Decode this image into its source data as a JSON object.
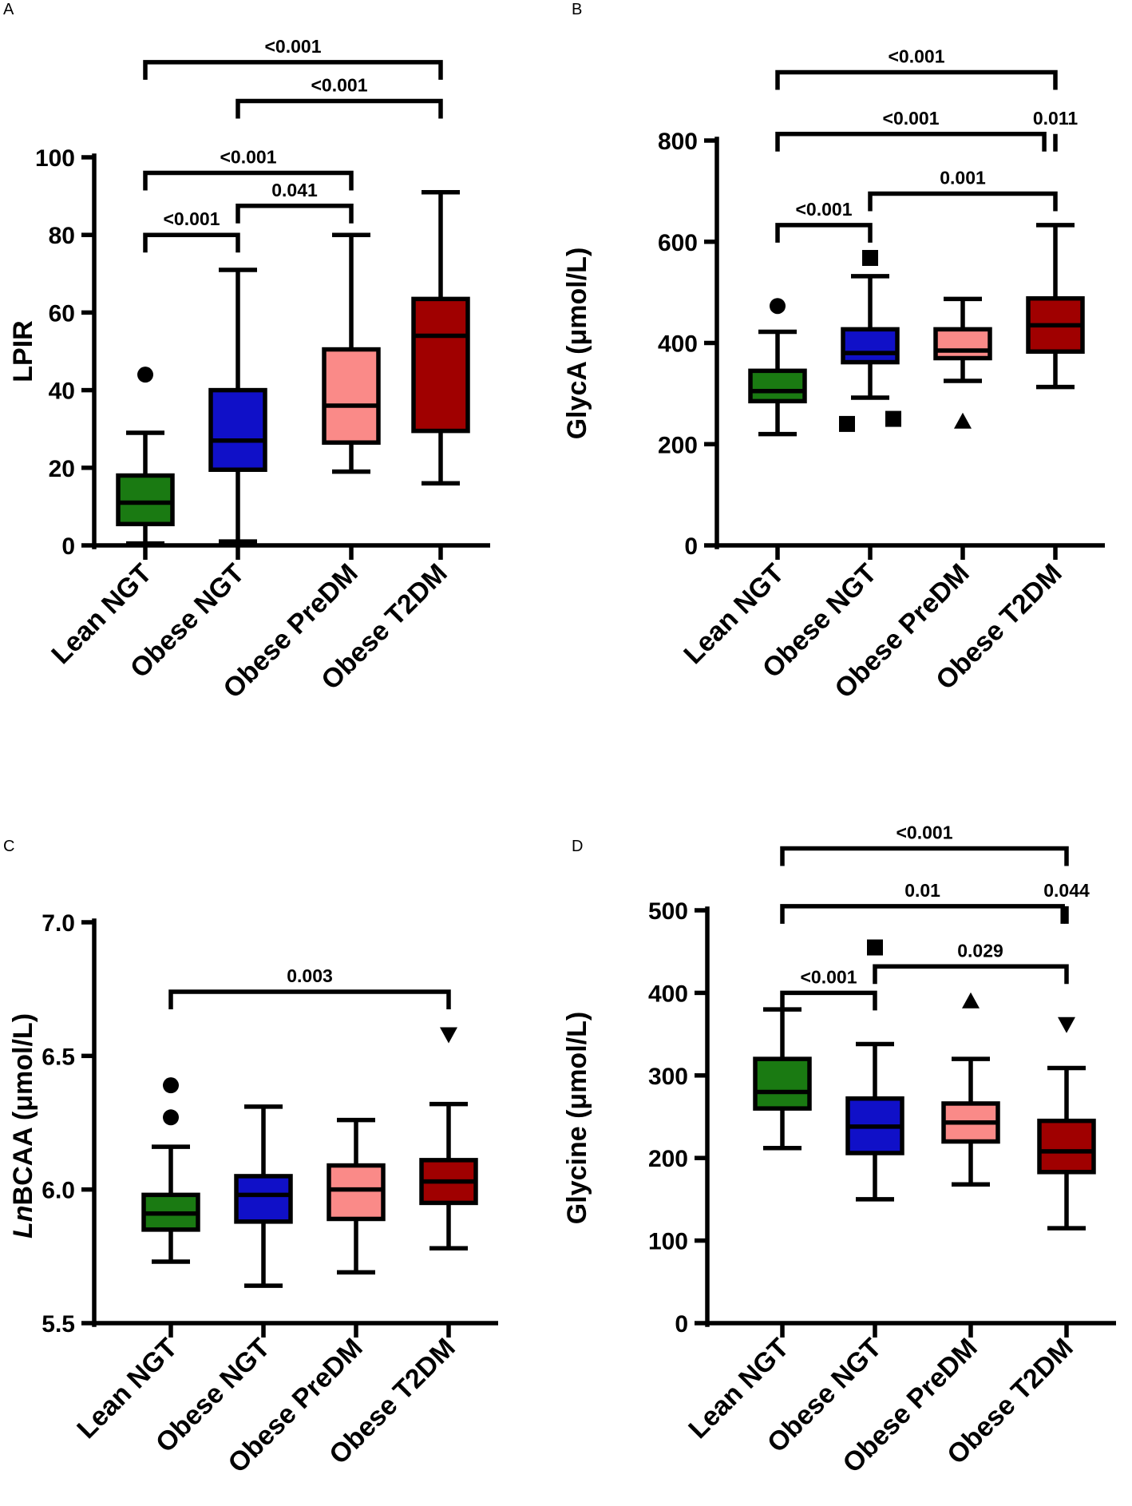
{
  "categories": [
    "Lean NGT",
    "Obese NGT",
    "Obese PreDM",
    "Obese T2DM"
  ],
  "colors": {
    "Lean NGT": "#1a7a12",
    "Obese NGT": "#1010c8",
    "Obese PreDM": "#fa8a88",
    "Obese T2DM": "#a00000"
  },
  "chart_data": [
    {
      "panel": "A",
      "type": "box",
      "ylabel": "LPIR",
      "ylim": [
        0,
        100
      ],
      "yticks": [
        0,
        20,
        40,
        60,
        80,
        100
      ],
      "categories": [
        "Lean NGT",
        "Obese NGT",
        "Obese PreDM",
        "Obese T2DM"
      ],
      "boxes": [
        {
          "group": "Lean NGT",
          "min": 0.5,
          "q1": 5.5,
          "median": 11,
          "q3": 18,
          "max": 29,
          "outliers": [
            {
              "value": 44,
              "marker": "circle"
            }
          ]
        },
        {
          "group": "Obese NGT",
          "min": 1,
          "q1": 19.5,
          "median": 27,
          "q3": 40,
          "max": 71,
          "outliers": []
        },
        {
          "group": "Obese PreDM",
          "min": 19,
          "q1": 26.5,
          "median": 36,
          "q3": 50.5,
          "max": 80,
          "outliers": []
        },
        {
          "group": "Obese T2DM",
          "min": 16,
          "q1": 29.5,
          "median": 54,
          "q3": 63.5,
          "max": 91,
          "outliers": []
        }
      ],
      "comparisons": [
        {
          "from": "Lean NGT",
          "to": "Obese NGT",
          "y": 80,
          "label": "<0.001"
        },
        {
          "from": "Obese NGT",
          "to": "Obese PreDM",
          "y": 87.5,
          "label": "0.041"
        },
        {
          "from": "Lean NGT",
          "to": "Obese PreDM",
          "y": 96,
          "label": "<0.001"
        },
        {
          "from": "Obese NGT",
          "to": "Obese T2DM",
          "y": 114.5,
          "label": "<0.001"
        },
        {
          "from": "Lean NGT",
          "to": "Obese T2DM",
          "y": 124.5,
          "label": "<0.001",
          "rightEnd": 3.6
        }
      ]
    },
    {
      "panel": "B",
      "type": "box",
      "ylabel": "GlycA (μmol/L)",
      "ylim": [
        0,
        800
      ],
      "yticks": [
        0,
        200,
        400,
        600,
        800
      ],
      "categories": [
        "Lean NGT",
        "Obese NGT",
        "Obese PreDM",
        "Obese T2DM"
      ],
      "boxes": [
        {
          "group": "Lean NGT",
          "min": 220,
          "q1": 285,
          "median": 305,
          "q3": 345,
          "max": 422,
          "outliers": [
            {
              "value": 473,
              "marker": "circle"
            }
          ]
        },
        {
          "group": "Obese NGT",
          "min": 292,
          "q1": 362,
          "median": 380,
          "q3": 427,
          "max": 532,
          "outliers": [
            {
              "value": 568,
              "marker": "square"
            },
            {
              "value": 240,
              "marker": "square",
              "offset": -0.25
            },
            {
              "value": 250,
              "marker": "square",
              "offset": 0.25
            }
          ]
        },
        {
          "group": "Obese PreDM",
          "min": 325,
          "q1": 370,
          "median": 385,
          "q3": 427,
          "max": 487,
          "outliers": [
            {
              "value": 245,
              "marker": "triangle"
            }
          ]
        },
        {
          "group": "Obese T2DM",
          "min": 313,
          "q1": 383,
          "median": 435,
          "q3": 488,
          "max": 633,
          "outliers": []
        }
      ],
      "comparisons": [
        {
          "from": "Lean NGT",
          "to": "Obese NGT",
          "y": 633,
          "label": "<0.001"
        },
        {
          "from": "Obese NGT",
          "to": "Obese T2DM",
          "y": 695,
          "label": "0.001",
          "labelAt": 2.0
        },
        {
          "from": "Lean NGT",
          "to": "Obese PreDM",
          "y": 813,
          "label": "<0.001",
          "rightEnd": 2.88
        },
        {
          "from": "Obese PreDM",
          "to": "Obese T2DM",
          "y": 813,
          "label": "0.011",
          "leftEnd": 3.1
        },
        {
          "from": "Lean NGT",
          "to": "Obese T2DM",
          "y": 935,
          "label": "<0.001"
        }
      ]
    },
    {
      "panel": "C",
      "type": "box",
      "ylabel": "LnBCAA (μmol/L)",
      "ylabel_italic": "Ln",
      "ylabel_rest": "BCAA (μmol/L)",
      "ylim": [
        5.5,
        7.0
      ],
      "yticks": [
        5.5,
        6.0,
        6.5,
        7.0
      ],
      "ytick_labels": [
        "5.5",
        "6.0",
        "6.5",
        "7.0"
      ],
      "categories": [
        "Lean NGT",
        "Obese NGT",
        "Obese PreDM",
        "Obese T2DM"
      ],
      "boxes": [
        {
          "group": "Lean NGT",
          "min": 5.73,
          "q1": 5.85,
          "median": 5.91,
          "q3": 5.98,
          "max": 6.16,
          "outliers": [
            {
              "value": 6.27,
              "marker": "circle"
            },
            {
              "value": 6.39,
              "marker": "circle"
            }
          ]
        },
        {
          "group": "Obese NGT",
          "min": 5.64,
          "q1": 5.88,
          "median": 5.98,
          "q3": 6.05,
          "max": 6.31,
          "outliers": []
        },
        {
          "group": "Obese PreDM",
          "min": 5.69,
          "q1": 5.89,
          "median": 6.0,
          "q3": 6.09,
          "max": 6.26,
          "outliers": []
        },
        {
          "group": "Obese T2DM",
          "min": 5.78,
          "q1": 5.95,
          "median": 6.03,
          "q3": 6.11,
          "max": 6.32,
          "outliers": [
            {
              "value": 6.58,
              "marker": "triangle-down"
            }
          ]
        }
      ],
      "comparisons": [
        {
          "from": "Lean NGT",
          "to": "Obese T2DM",
          "y": 6.74,
          "label": "0.003"
        }
      ]
    },
    {
      "panel": "D",
      "type": "box",
      "ylabel": "Glycine  (μmol/L)",
      "ylim": [
        0,
        500
      ],
      "yticks": [
        0,
        100,
        200,
        300,
        400,
        500
      ],
      "categories": [
        "Lean NGT",
        "Obese NGT",
        "Obese PreDM",
        "Obese T2DM"
      ],
      "boxes": [
        {
          "group": "Lean NGT",
          "min": 212,
          "q1": 260,
          "median": 280,
          "q3": 320,
          "max": 380,
          "outliers": []
        },
        {
          "group": "Obese NGT",
          "min": 150,
          "q1": 206,
          "median": 238,
          "q3": 272,
          "max": 338,
          "outliers": [
            {
              "value": 455,
              "marker": "square"
            }
          ]
        },
        {
          "group": "Obese PreDM",
          "min": 168,
          "q1": 220,
          "median": 243,
          "q3": 266,
          "max": 320,
          "outliers": [
            {
              "value": 390,
              "marker": "triangle"
            }
          ]
        },
        {
          "group": "Obese T2DM",
          "min": 115,
          "q1": 183,
          "median": 208,
          "q3": 245,
          "max": 309,
          "outliers": [
            {
              "value": 362,
              "marker": "triangle-down"
            }
          ]
        }
      ],
      "comparisons": [
        {
          "from": "Lean NGT",
          "to": "Obese NGT",
          "y": 400,
          "label": "<0.001"
        },
        {
          "from": "Obese NGT",
          "to": "Obese T2DM",
          "y": 432,
          "label": "0.029",
          "labelAt": 2.1
        },
        {
          "from": "Lean NGT",
          "to": "Obese PreDM",
          "y": 505,
          "label": "0.01",
          "rightEnd": 2.96
        },
        {
          "from": "Obese PreDM",
          "to": "Obese T2DM",
          "y": 505,
          "label": "0.044",
          "leftEnd": 3.06
        },
        {
          "from": "Lean NGT",
          "to": "Obese T2DM",
          "y": 575,
          "label": "<0.001"
        }
      ]
    }
  ]
}
